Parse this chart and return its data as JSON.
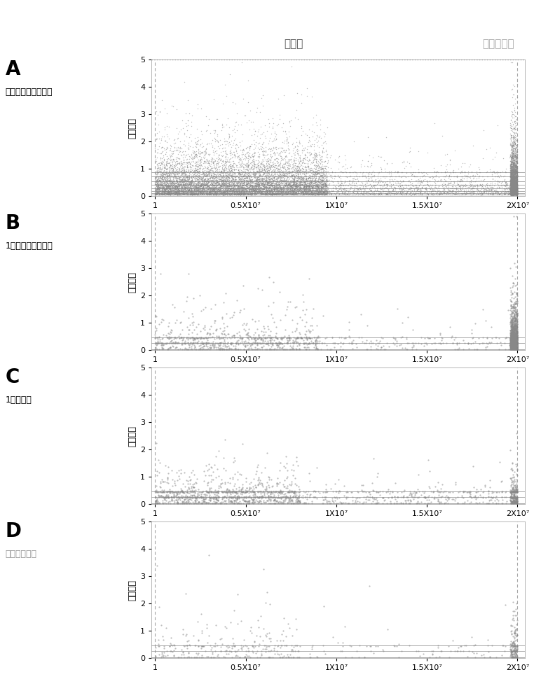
{
  "fig_width": 7.72,
  "fig_height": 10.0,
  "dpi": 100,
  "background_color": "#ffffff",
  "panel_labels": [
    "A",
    "B",
    "C",
    "D"
  ],
  "panel_titles": [
    "子宫内膜癌免疫特征",
    "1个子宫内膜癌病人",
    "1个健康人",
    "本次检测样本"
  ],
  "panel_title_colors": [
    "#000000",
    "#000000",
    "#000000",
    "#999999"
  ],
  "top_label_left": "对照组",
  "top_label_right": "子宫内膜癌",
  "top_label_left_color": "#555555",
  "top_label_right_color": "#aaaaaa",
  "ylabel": "免疫序列",
  "xmax": 20000000,
  "xmin": 1,
  "ymin": 0,
  "ymax": 5,
  "yticks": [
    0,
    1,
    2,
    3,
    4,
    5
  ],
  "xtick_labels": [
    "1",
    "0.5X10⁷",
    "1X10⁷",
    "1.5X10⁷",
    "2X10⁷"
  ],
  "xtick_positions": [
    1,
    5000000,
    10000000,
    15000000,
    20000000
  ],
  "dot_color": "#888888",
  "dot_size_A": 1.0,
  "dot_size_BCD": 2.5,
  "horizontal_lines_A": [
    0.05,
    0.1,
    0.18,
    0.28,
    0.4,
    0.55,
    0.72,
    0.88
  ],
  "horizontal_lines_BCD": [
    0.03,
    0.25,
    0.45
  ],
  "hline_color": "#888888",
  "right_dense_start": 19600000
}
